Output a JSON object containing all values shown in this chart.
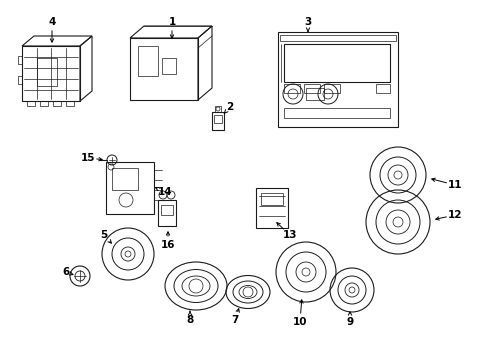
{
  "background_color": "#ffffff",
  "line_color": "#1a1a1a",
  "figsize": [
    4.89,
    3.6
  ],
  "dpi": 100,
  "labels": {
    "1": [
      172,
      28,
      172,
      47
    ],
    "2": [
      218,
      108,
      218,
      118
    ],
    "3": [
      308,
      28,
      308,
      38
    ],
    "4": [
      52,
      28,
      52,
      45
    ],
    "5": [
      104,
      232,
      116,
      242
    ],
    "6": [
      72,
      270,
      82,
      272
    ],
    "7": [
      232,
      318,
      232,
      307
    ],
    "8": [
      196,
      318,
      196,
      307
    ],
    "9": [
      352,
      318,
      348,
      306
    ],
    "10": [
      306,
      318,
      306,
      300
    ],
    "11": [
      452,
      185,
      437,
      185
    ],
    "12": [
      452,
      215,
      432,
      218
    ],
    "13": [
      278,
      228,
      272,
      218
    ],
    "14": [
      162,
      190,
      148,
      188
    ],
    "15": [
      92,
      158,
      108,
      160
    ],
    "16": [
      168,
      242,
      168,
      228
    ]
  }
}
